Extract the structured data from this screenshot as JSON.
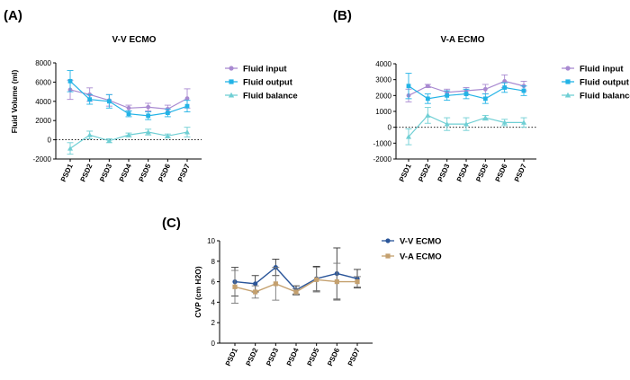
{
  "panels": [
    {
      "letter": "(A)"
    },
    {
      "letter": "(B)"
    },
    {
      "letter": "(C)"
    }
  ],
  "colors": {
    "input": "#a98ad1",
    "output": "#23b3e6",
    "balance": "#6fcfd4",
    "vv": "#2a5599",
    "va": "#c4a06e",
    "err_vv": "#333333",
    "err_va": "#777777"
  },
  "chart_data": [
    {
      "type": "line",
      "title": "V-V ECMO",
      "xlabel": "",
      "ylabel": "Fluid Volume (ml)",
      "categories": [
        "PSD1",
        "PSD2",
        "PSD3",
        "PSD4",
        "PSD5",
        "PSD6",
        "PSD7"
      ],
      "ylim": [
        -2000,
        8000
      ],
      "yticks": [
        -2000,
        0,
        2000,
        4000,
        6000,
        8000
      ],
      "zero_line": "dotted",
      "legend_position": "right",
      "series": [
        {
          "name": "Fluid input",
          "key": "input",
          "marker": "circle",
          "values": [
            5200,
            4700,
            4100,
            3300,
            3400,
            3200,
            4300
          ],
          "errors": [
            1000,
            700,
            600,
            300,
            400,
            400,
            1000
          ]
        },
        {
          "name": "Fluid output",
          "key": "output",
          "marker": "square",
          "values": [
            6100,
            4200,
            4000,
            2700,
            2500,
            2800,
            3500
          ],
          "errors": [
            1100,
            500,
            700,
            300,
            400,
            400,
            600
          ]
        },
        {
          "name": "Fluid balance",
          "key": "balance",
          "marker": "triangle",
          "values": [
            -900,
            500,
            -100,
            500,
            800,
            400,
            800
          ],
          "errors": [
            600,
            400,
            200,
            200,
            300,
            200,
            500
          ]
        }
      ]
    },
    {
      "type": "line",
      "title": "V-A ECMO",
      "xlabel": "",
      "ylabel": "",
      "categories": [
        "PSD1",
        "PSD2",
        "PSD3",
        "PSD4",
        "PSD5",
        "PSD6",
        "PSD7"
      ],
      "ylim": [
        -2000,
        4000
      ],
      "yticks": [
        -2000,
        -1000,
        0,
        1000,
        2000,
        3000,
        4000
      ],
      "zero_line": "dotted",
      "legend_position": "right",
      "series": [
        {
          "name": "Fluid input",
          "key": "input",
          "marker": "circle",
          "values": [
            2000,
            2600,
            2200,
            2300,
            2400,
            2900,
            2600
          ],
          "errors": [
            400,
            100,
            200,
            200,
            300,
            400,
            300
          ]
        },
        {
          "name": "Fluid output",
          "key": "output",
          "marker": "square",
          "values": [
            2600,
            1800,
            2000,
            2100,
            1800,
            2500,
            2300
          ],
          "errors": [
            800,
            300,
            300,
            300,
            300,
            300,
            300
          ]
        },
        {
          "name": "Fluid balance",
          "key": "balance",
          "marker": "triangle",
          "values": [
            -600,
            750,
            200,
            200,
            600,
            300,
            300
          ],
          "errors": [
            500,
            500,
            400,
            400,
            150,
            200,
            300
          ]
        }
      ]
    },
    {
      "type": "line",
      "title": "",
      "xlabel": "",
      "ylabel": "CVP (cm H2O)",
      "categories": [
        "PSD1",
        "PSD2",
        "PSD3",
        "PSD4",
        "PSD5",
        "PSD6",
        "PSD7"
      ],
      "ylim": [
        0,
        10
      ],
      "yticks": [
        0,
        2,
        4,
        6,
        8,
        10
      ],
      "legend_position": "right",
      "series": [
        {
          "name": "V-V ECMO",
          "key": "vv",
          "marker": "circle",
          "values": [
            6.0,
            5.8,
            7.4,
            5.2,
            6.3,
            6.8,
            6.3
          ],
          "errors": [
            1.4,
            0.8,
            0.8,
            0.4,
            1.2,
            2.5,
            0.9
          ]
        },
        {
          "name": "V-A ECMO",
          "key": "va",
          "marker": "square",
          "values": [
            5.5,
            5.0,
            5.8,
            5.0,
            6.2,
            6.0,
            6.0
          ],
          "errors": [
            1.6,
            0.6,
            1.6,
            0.3,
            1.2,
            1.8,
            0.5
          ]
        }
      ]
    }
  ]
}
